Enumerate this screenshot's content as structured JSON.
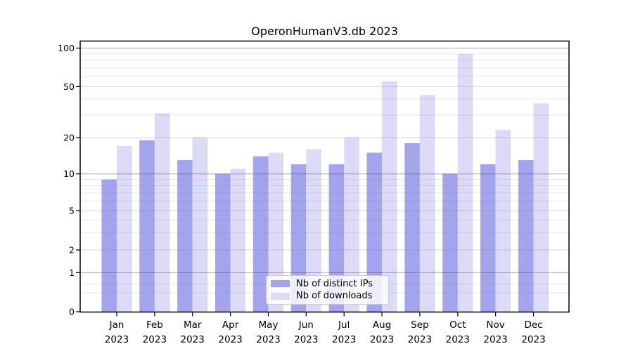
{
  "window": {
    "background": "#ffffff"
  },
  "chart_data": {
    "type": "bar",
    "title": "OperonHumanV3.db 2023",
    "categories": [
      "Jan 2023",
      "Feb 2023",
      "Mar 2023",
      "Apr 2023",
      "May 2023",
      "Jun 2023",
      "Jul 2023",
      "Aug 2023",
      "Sep 2023",
      "Oct 2023",
      "Nov 2023",
      "Dec 2023"
    ],
    "series": [
      {
        "name": "Nb of distinct IPs",
        "color": "#a4a4ee",
        "values": [
          9,
          19,
          13,
          10,
          14,
          12,
          12,
          15,
          18,
          10,
          12,
          13
        ]
      },
      {
        "name": "Nb of downloads",
        "color": "#dbdbf8",
        "values": [
          17,
          31,
          20,
          11,
          15,
          16,
          20,
          55,
          43,
          90,
          23,
          37
        ]
      }
    ],
    "xlabel": "",
    "ylabel": "",
    "yscale": "symlog",
    "ylim": [
      0,
      115
    ],
    "y_ticks": [
      0,
      1,
      2,
      5,
      10,
      20,
      50,
      100
    ],
    "y_major_gridlines": [
      1,
      10,
      100
    ],
    "y_minor_gridlines": [
      0.3,
      0.5,
      3,
      4,
      6,
      7,
      8,
      9,
      30,
      40,
      60,
      70,
      80,
      90
    ],
    "grid": true,
    "legend_position": "lower center",
    "colors": {
      "bar_distinct_ips": "#a4a4ee",
      "bar_downloads": "#dbdbf8",
      "axis": "#000000",
      "major_gridline": "#b2b2b2",
      "tick_gridline": "#dadada",
      "minor_gridline": "#ebebeb"
    }
  },
  "legend": {
    "items": [
      {
        "label": "Nb of distinct IPs",
        "color": "#a4a4ee"
      },
      {
        "label": "Nb of downloads",
        "color": "#dbdbf8"
      }
    ]
  }
}
